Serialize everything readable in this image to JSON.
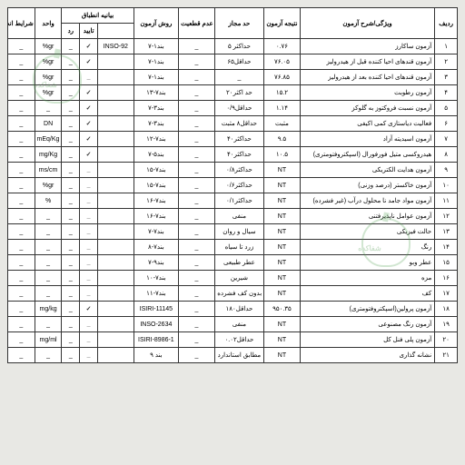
{
  "headers": {
    "row": "ردیف",
    "test": "ویژگی/شرح آزمون",
    "result": "نتیجه آزمون",
    "limit": "حد مجاز",
    "uncertainty": "عدم قطعیت",
    "method": "روش آزمون",
    "compliance": "بیانیه انطباق",
    "accept": "تایید",
    "reject": "رد",
    "unit": "واحد",
    "conditions": "شرایط انجام آزمون"
  },
  "rows": [
    {
      "n": "۱",
      "test": "آزمون ساکارز",
      "result": "۰.۷۶",
      "limit": "حداکثر ۵",
      "unc": "_",
      "method": "بند۱-۷",
      "comp": "INSO-92",
      "acc": "✓",
      "rej": "_",
      "unit": "gr%",
      "cond": "_"
    },
    {
      "n": "۲",
      "test": "آزمون قندهای احیا کننده قبل از هیدرولیز",
      "result": "۷۶.۰۵",
      "limit": "حداقل۶۵",
      "unc": "_",
      "method": "بند۱-۷",
      "comp": "",
      "acc": "✓",
      "rej": "_",
      "unit": "gr%",
      "cond": "_"
    },
    {
      "n": "۳",
      "test": "آزمون قندهای احیا کننده بعد از هیدرولیز",
      "result": "۷۶.۸۵",
      "limit": "_",
      "unc": "_",
      "method": "بند۱-۷",
      "comp": "",
      "acc": "_",
      "rej": "_",
      "unit": "gr%",
      "cond": "_"
    },
    {
      "n": "۴",
      "test": "آزمون رطوبت",
      "result": "۱۵.۲",
      "limit": "حد اکثر۲۰",
      "unc": "_",
      "method": "بند۷-۱۳",
      "comp": "",
      "acc": "✓",
      "rej": "_",
      "unit": "gr%",
      "cond": "_"
    },
    {
      "n": "۵",
      "test": "آزمون نسبت فروکتوز به گلوکز",
      "result": "۱.۱۴",
      "limit": "حداقل۰/۹",
      "unc": "_",
      "method": "بند۳-۷",
      "comp": "",
      "acc": "✓",
      "rej": "_",
      "unit": "_",
      "cond": "_"
    },
    {
      "n": "۶",
      "test": "فعالیت دیاستازی کمی اکیفی",
      "result": "مثبت",
      "limit": "حداقل۸ مثبت",
      "unc": "_",
      "method": "بند۳-۷",
      "comp": "",
      "acc": "✓",
      "rej": "_",
      "unit": "DN",
      "cond": "_"
    },
    {
      "n": "۷",
      "test": "آزمون اسیدیته آزاد",
      "result": "۹.۵",
      "limit": "حداکثر۴۰",
      "unc": "_",
      "method": "بند۷-۱۲",
      "comp": "",
      "acc": "✓",
      "rej": "_",
      "unit": "mEq/Kg",
      "cond": "_"
    },
    {
      "n": "۸",
      "test": "هیدروکسی متیل فورفورال (اسپکتروفتومتری)",
      "result": "۱۰.۵",
      "limit": "حداکثر۴۰",
      "unc": "_",
      "method": "بند۵-۷",
      "comp": "",
      "acc": "✓",
      "rej": "_",
      "unit": "mg/Kg",
      "cond": "_"
    },
    {
      "n": "۹",
      "test": "آزمون هدایت الکتریکی",
      "result": "NT",
      "limit": "حداکثر۰/۸",
      "unc": "_",
      "method": "بند۷-۱۵",
      "comp": "",
      "acc": "_",
      "rej": "_",
      "unit": "ms/cm",
      "cond": "_"
    },
    {
      "n": "۱۰",
      "test": "آزمون خاکستر (درصد وزنی)",
      "result": "NT",
      "limit": "حداکثر۰/۶",
      "unc": "_",
      "method": "بند۷-۱۵",
      "comp": "",
      "acc": "_",
      "rej": "_",
      "unit": "gr%",
      "cond": "_"
    },
    {
      "n": "۱۱",
      "test": "آزمون مواد جامد نا محلول درآب (غیر فشرده)",
      "result": "NT",
      "limit": "حداکثر۰/۱",
      "unc": "_",
      "method": "بند۷-۱۶",
      "comp": "",
      "acc": "_",
      "rej": "_",
      "unit": "%",
      "cond": "_"
    },
    {
      "n": "۱۲",
      "test": "آزمون عوامل ناپذیرفتنی",
      "result": "NT",
      "limit": "منفی",
      "unc": "_",
      "method": "بند۷-۱۶",
      "comp": "",
      "acc": "_",
      "rej": "_",
      "unit": "_",
      "cond": "_"
    },
    {
      "n": "۱۳",
      "test": "حالت فیزیکی",
      "result": "NT",
      "limit": "سیال و روان",
      "unc": "_",
      "method": "بند۷-۷",
      "comp": "",
      "acc": "_",
      "rej": "_",
      "unit": "_",
      "cond": "_"
    },
    {
      "n": "۱۴",
      "test": "رنگ",
      "result": "NT",
      "limit": "زرد تا سیاه",
      "unc": "_",
      "method": "بند۷-۸",
      "comp": "",
      "acc": "_",
      "rej": "_",
      "unit": "_",
      "cond": "_"
    },
    {
      "n": "۱۵",
      "test": "عطر وبو",
      "result": "NT",
      "limit": "عطر طبیعی",
      "unc": "_",
      "method": "بند۹-۷",
      "comp": "",
      "acc": "_",
      "rej": "_",
      "unit": "_",
      "cond": "_"
    },
    {
      "n": "۱۶",
      "test": "مزه",
      "result": "NT",
      "limit": "شیرین",
      "unc": "_",
      "method": "بند۷-۱۰",
      "comp": "",
      "acc": "_",
      "rej": "_",
      "unit": "_",
      "cond": "_"
    },
    {
      "n": "۱۷",
      "test": "کف",
      "result": "NT",
      "limit": "بدون کف فشرده اضافی",
      "unc": "_",
      "method": "بند۷-۱۱",
      "comp": "",
      "acc": "_",
      "rej": "_",
      "unit": "_",
      "cond": "_"
    },
    {
      "n": "۱۸",
      "test": "آزمون پرولین(اسپکتروفتومتری)",
      "result": "۹۵۰.۳۵",
      "limit": "حداقل۱۸۰",
      "unc": "_",
      "method": "ISIRI-11145",
      "comp": "",
      "acc": "✓",
      "rej": "_",
      "unit": "mg/kg",
      "cond": "_"
    },
    {
      "n": "۱۹",
      "test": "آزمون رنگ مصنوعی",
      "result": "NT",
      "limit": "منفی",
      "unc": "_",
      "method": "INSO-2634",
      "comp": "",
      "acc": "_",
      "rej": "_",
      "unit": "_",
      "cond": "_"
    },
    {
      "n": "۲۰",
      "test": "آزمون پلی فنل کل",
      "result": "NT",
      "limit": "حداقل۰.۰۲",
      "unc": "_",
      "method": "ISIRI-8986-1",
      "comp": "",
      "acc": "_",
      "rej": "_",
      "unit": "mg/ml",
      "cond": "_"
    },
    {
      "n": "۲۱",
      "test": "نشانه گذاری",
      "result": "NT",
      "limit": "مطابق استاندارد",
      "unc": "_",
      "method": "بند ۹",
      "comp": "",
      "acc": "_",
      "rej": "_",
      "unit": "_",
      "cond": "_"
    }
  ]
}
